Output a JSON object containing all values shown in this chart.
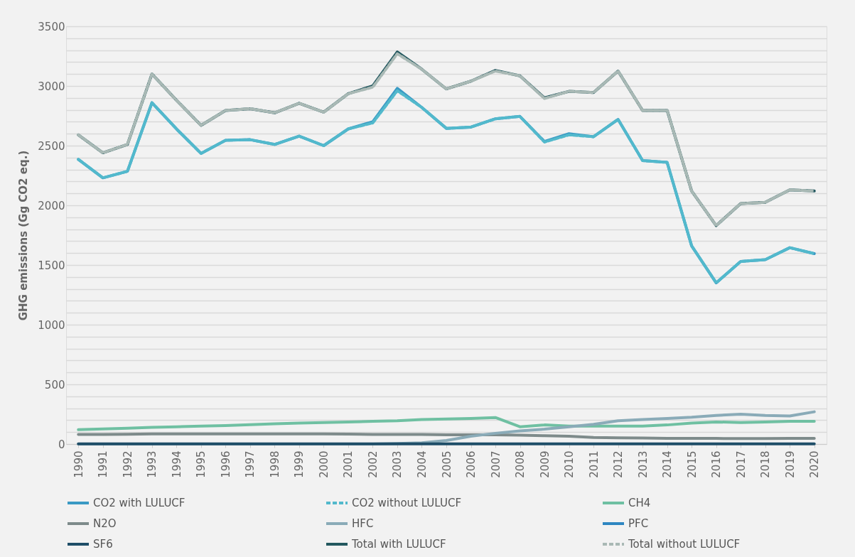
{
  "chart_data": {
    "type": "line",
    "ylabel": "GHG emissions (Gg CO2 eq.)",
    "categories": [
      "1990",
      "1991",
      "1992",
      "1993",
      "1994",
      "1995",
      "1996",
      "1997",
      "1998",
      "1999",
      "2000",
      "2001",
      "2002",
      "2003",
      "2004",
      "2005",
      "2006",
      "2007",
      "2008",
      "2009",
      "2010",
      "2011",
      "2012",
      "2013",
      "2014",
      "2015",
      "2016",
      "2017",
      "2018",
      "2019",
      "2020"
    ],
    "ylim": [
      0,
      3500
    ],
    "yticks": [
      0,
      {
        "value": 100,
        "label": null
      },
      {
        "value": 200,
        "label": null
      },
      {
        "value": 300,
        "label": null
      },
      {
        "value": 400,
        "label": null
      },
      500,
      {
        "value": 600,
        "label": null
      },
      {
        "value": 700,
        "label": null
      },
      {
        "value": 800,
        "label": null
      },
      {
        "value": 900,
        "label": null
      },
      1000,
      {
        "value": 1100,
        "label": null
      },
      {
        "value": 1200,
        "label": null
      },
      {
        "value": 1300,
        "label": null
      },
      {
        "value": 1400,
        "label": null
      },
      1500,
      {
        "value": 1600,
        "label": null
      },
      {
        "value": 1700,
        "label": null
      },
      {
        "value": 1800,
        "label": null
      },
      {
        "value": 1900,
        "label": null
      },
      2000,
      {
        "value": 2100,
        "label": null
      },
      {
        "value": 2200,
        "label": null
      },
      {
        "value": 2300,
        "label": null
      },
      {
        "value": 2400,
        "label": null
      },
      2500,
      {
        "value": 2600,
        "label": null
      },
      {
        "value": 2700,
        "label": null
      },
      {
        "value": 2800,
        "label": null
      },
      {
        "value": 2900,
        "label": null
      },
      3000,
      {
        "value": 3100,
        "label": null
      },
      {
        "value": 3200,
        "label": null
      },
      {
        "value": 3300,
        "label": null
      },
      {
        "value": 3400,
        "label": null
      },
      3500
    ],
    "grid": "y",
    "legend": "bottom",
    "marker": "none",
    "series": [
      {
        "name": "CO2 with LULUCF",
        "color": "#3a9ac4",
        "line_style": "solid",
        "values": [
          2385,
          2230,
          2285,
          2860,
          2640,
          2435,
          2545,
          2550,
          2510,
          2580,
          2500,
          2640,
          2700,
          2980,
          2820,
          2645,
          2655,
          2725,
          2745,
          2535,
          2600,
          2575,
          2720,
          2375,
          2360,
          1660,
          1350,
          1530,
          1545,
          1645,
          1595
        ]
      },
      {
        "name": "CO2 without LULUCF",
        "color": "#52b9cc",
        "line_style": "dashed",
        "values": [
          2385,
          2230,
          2285,
          2860,
          2640,
          2435,
          2545,
          2550,
          2510,
          2580,
          2500,
          2640,
          2690,
          2960,
          2820,
          2645,
          2655,
          2725,
          2745,
          2530,
          2590,
          2575,
          2720,
          2375,
          2360,
          1660,
          1350,
          1530,
          1545,
          1645,
          1595
        ]
      },
      {
        "name": "CH4",
        "color": "#6fc0a2",
        "line_style": "solid",
        "values": [
          120,
          127,
          133,
          140,
          145,
          150,
          155,
          162,
          170,
          175,
          180,
          185,
          190,
          195,
          205,
          210,
          215,
          222,
          145,
          160,
          150,
          150,
          150,
          150,
          160,
          175,
          185,
          180,
          185,
          190,
          190
        ]
      },
      {
        "name": "N2O",
        "color": "#7e8b8b",
        "line_style": "solid",
        "values": [
          80,
          80,
          82,
          85,
          85,
          85,
          85,
          85,
          85,
          85,
          85,
          83,
          80,
          80,
          80,
          78,
          78,
          78,
          75,
          70,
          65,
          55,
          52,
          50,
          48,
          48,
          47,
          46,
          46,
          47,
          48
        ]
      },
      {
        "name": "HFC",
        "color": "#8aabb8",
        "line_style": "solid",
        "values": [
          0,
          0,
          0,
          0,
          0,
          0,
          0,
          0,
          0,
          0,
          0,
          0,
          0,
          5,
          10,
          30,
          65,
          90,
          110,
          125,
          145,
          165,
          195,
          205,
          215,
          225,
          240,
          250,
          240,
          235,
          270
        ]
      },
      {
        "name": "PFC",
        "color": "#2e86c1",
        "line_style": "solid",
        "values": [
          null,
          null,
          null,
          null,
          null,
          null,
          null,
          null,
          null,
          null,
          null,
          null,
          null,
          null,
          null,
          null,
          null,
          null,
          null,
          null,
          null,
          null,
          null,
          null,
          null,
          null,
          null,
          null,
          null,
          null,
          null
        ]
      },
      {
        "name": "SF6",
        "color": "#1f4e68",
        "line_style": "solid",
        "values": [
          1,
          1,
          1,
          1,
          1,
          1,
          1,
          1,
          1,
          1,
          1,
          1,
          1,
          1,
          1,
          1,
          1,
          1,
          1,
          1,
          1,
          1,
          1,
          1,
          1,
          1,
          1,
          1,
          1,
          1,
          1
        ]
      },
      {
        "name": "Total with LULUCF",
        "color": "#23585f",
        "line_style": "solid",
        "values": [
          2590,
          2440,
          2510,
          3100,
          2880,
          2670,
          2795,
          2810,
          2775,
          2855,
          2780,
          2935,
          3000,
          3285,
          3140,
          2975,
          3040,
          3130,
          3085,
          2900,
          2955,
          2945,
          3125,
          2795,
          2795,
          2120,
          1830,
          2015,
          2025,
          2130,
          2120
        ]
      },
      {
        "name": "Total without LULUCF",
        "color": "#a9b9b5",
        "line_style": "dashed",
        "values": [
          2590,
          2440,
          2510,
          3100,
          2880,
          2670,
          2795,
          2810,
          2775,
          2855,
          2780,
          2935,
          2990,
          3270,
          3140,
          2975,
          3040,
          3125,
          3085,
          2895,
          2955,
          2945,
          3125,
          2795,
          2795,
          2120,
          1830,
          2015,
          2025,
          2130,
          2120
        ]
      }
    ]
  }
}
